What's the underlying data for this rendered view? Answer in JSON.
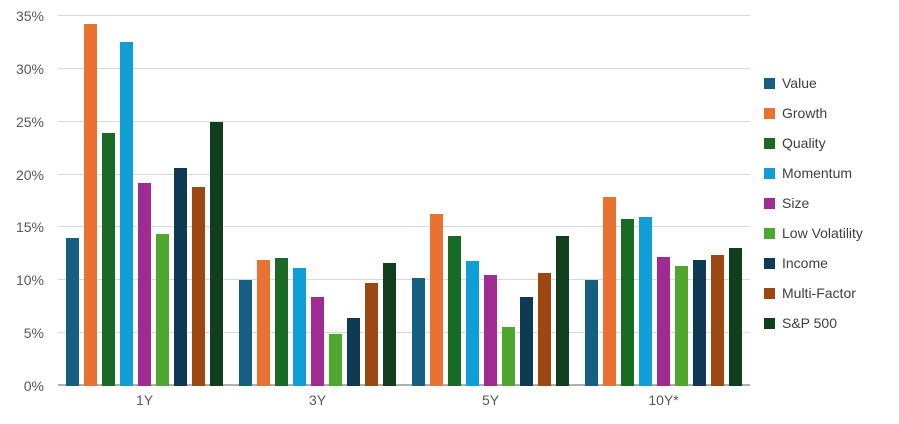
{
  "style": {
    "background": "#FFFFFF",
    "grid_color": "#D9D9D9",
    "axis_line_color": "#AFAFAF",
    "tick_label_color": "#595959",
    "legend_text_color": "#404040"
  },
  "chart_data": {
    "type": "bar",
    "title": "",
    "xlabel": "",
    "ylabel": "",
    "categories": [
      "1Y",
      "3Y",
      "5Y",
      "10Y*"
    ],
    "series": [
      {
        "name": "Value",
        "color": "#156082",
        "values": [
          14.0,
          10.0,
          10.2,
          10.0
        ]
      },
      {
        "name": "Growth",
        "color": "#E97132",
        "values": [
          34.2,
          11.9,
          16.3,
          17.9
        ]
      },
      {
        "name": "Quality",
        "color": "#196B24",
        "values": [
          23.9,
          12.1,
          14.2,
          15.8
        ]
      },
      {
        "name": "Momentum",
        "color": "#0F9ED5",
        "values": [
          32.5,
          11.2,
          11.8,
          16.0
        ]
      },
      {
        "name": "Size",
        "color": "#A02B93",
        "values": [
          19.2,
          8.4,
          10.5,
          12.2
        ]
      },
      {
        "name": "Low Volatility",
        "color": "#4EA72E",
        "values": [
          14.4,
          4.9,
          5.6,
          11.4
        ]
      },
      {
        "name": "Income",
        "color": "#0E3A53",
        "values": [
          20.6,
          6.4,
          8.4,
          11.9
        ]
      },
      {
        "name": "Multi-Factor",
        "color": "#9D4712",
        "values": [
          18.8,
          9.7,
          10.7,
          12.4
        ]
      },
      {
        "name": "S&P 500",
        "color": "#123F1B",
        "values": [
          25.0,
          11.6,
          14.2,
          13.1
        ]
      }
    ],
    "ylim": [
      0,
      35
    ],
    "ytick_step": 5,
    "ytick_format": "{v}%",
    "grid": true,
    "legend_position": "right"
  }
}
